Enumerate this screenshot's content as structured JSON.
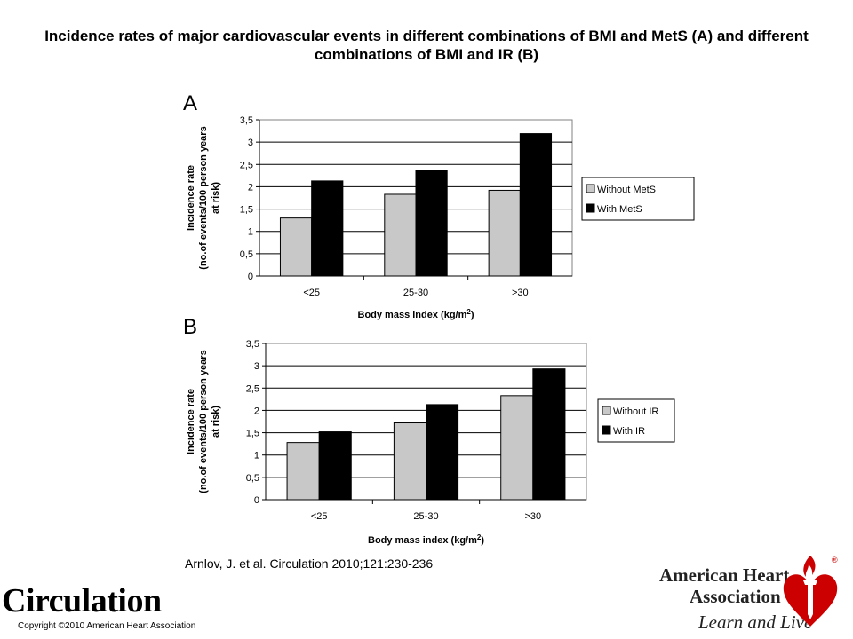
{
  "title": "Incidence rates of major cardiovascular events in different combinations of BMI and MetS (A) and different combinations of BMI and IR (B)",
  "citation": "Arnlov, J. et al. Circulation 2010;121:230-236",
  "journal": "Circulation",
  "copyright": "Copyright ©2010 American Heart Association",
  "logo": {
    "line1": "American Heart",
    "line2": "Association",
    "slogan": "Learn and Live",
    "registered": "®",
    "color": "#cc0000"
  },
  "chart_data": [
    {
      "panel": "A",
      "type": "bar",
      "categories": [
        "<25",
        "25-30",
        ">30"
      ],
      "series": [
        {
          "name": "Without MetS",
          "values": [
            1.3,
            1.83,
            1.92
          ],
          "color": "#c8c8c8"
        },
        {
          "name": "With MetS",
          "values": [
            2.13,
            2.36,
            3.19
          ],
          "color": "#000000"
        }
      ],
      "ylabel_line1": "Incidence rate",
      "ylabel_line2": "(no.of events/100 person years",
      "ylabel_line3": "at risk)",
      "xlabel": "Body mass index (kg/m",
      "xlabel_sup": "2",
      "xlabel_end": ")",
      "yticks": [
        "0",
        "0,5",
        "1",
        "1,5",
        "2",
        "2,5",
        "3",
        "3,5"
      ],
      "ylim": [
        0,
        3.5
      ],
      "grid": true,
      "legend_position": "right"
    },
    {
      "panel": "B",
      "type": "bar",
      "categories": [
        "<25",
        "25-30",
        ">30"
      ],
      "series": [
        {
          "name": "Without IR",
          "values": [
            1.28,
            1.72,
            2.33
          ],
          "color": "#c8c8c8"
        },
        {
          "name": "With IR",
          "values": [
            1.52,
            2.13,
            2.93
          ],
          "color": "#000000"
        }
      ],
      "ylabel_line1": "Incidence rate",
      "ylabel_line2": "(no.of events/100 person years",
      "ylabel_line3": "at risk)",
      "xlabel": "Body mass index (kg/m",
      "xlabel_sup": "2",
      "xlabel_end": ")",
      "yticks": [
        "0",
        "0,5",
        "1",
        "1,5",
        "2",
        "2,5",
        "3",
        "3,5"
      ],
      "ylim": [
        0,
        3.5
      ],
      "grid": true,
      "legend_position": "right"
    }
  ]
}
